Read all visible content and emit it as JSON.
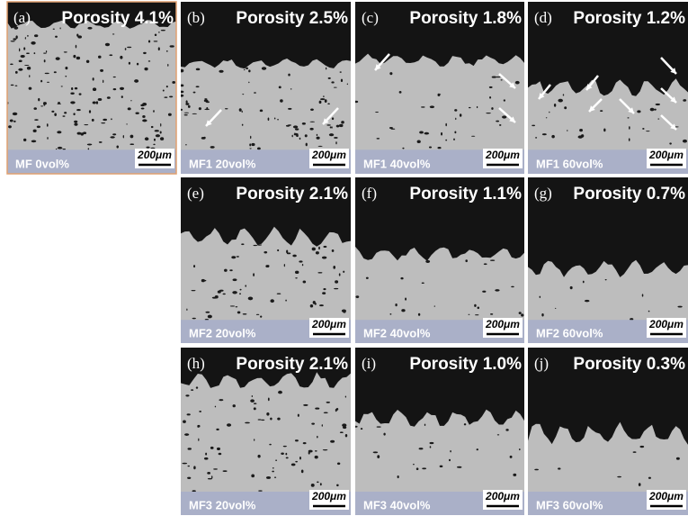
{
  "panels": [
    {
      "letter": "(a)",
      "porosity": "Porosity 4.1%",
      "sample": "MF 0vol%",
      "scale": "200μm"
    },
    {
      "letter": "(b)",
      "porosity": "Porosity 2.5%",
      "sample": "MF1 20vol%",
      "scale": "200μm"
    },
    {
      "letter": "(c)",
      "porosity": "Porosity 1.8%",
      "sample": "MF1 40vol%",
      "scale": "200μm"
    },
    {
      "letter": "(d)",
      "porosity": "Porosity 1.2%",
      "sample": "MF1 60vol%",
      "scale": "200μm"
    },
    {
      "letter": "(e)",
      "porosity": "Porosity 2.1%",
      "sample": "MF2 20vol%",
      "scale": "200μm"
    },
    {
      "letter": "(f)",
      "porosity": "Porosity 1.1%",
      "sample": "MF2 40vol%",
      "scale": "200μm"
    },
    {
      "letter": "(g)",
      "porosity": "Porosity 0.7%",
      "sample": "MF2 60vol%",
      "scale": "200μm"
    },
    {
      "letter": "(h)",
      "porosity": "Porosity 2.1%",
      "sample": "MF3 20vol%",
      "scale": "200μm"
    },
    {
      "letter": "(i)",
      "porosity": "Porosity 1.0%",
      "sample": "MF3 40vol%",
      "scale": "200μm"
    },
    {
      "letter": "(j)",
      "porosity": "Porosity 0.3%",
      "sample": "MF3 60vol%",
      "scale": "200μm"
    }
  ]
}
